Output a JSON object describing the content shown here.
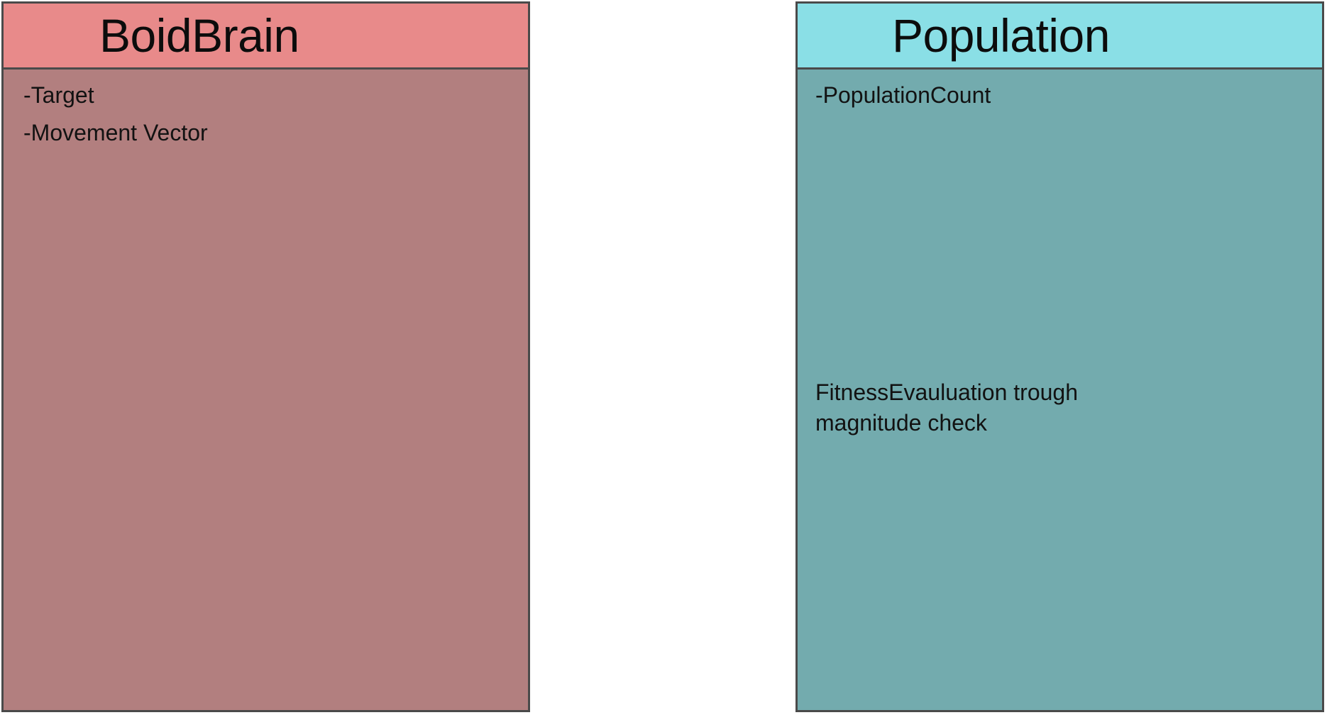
{
  "classes": [
    {
      "id": "boidbrain",
      "name": "BoidBrain",
      "attributes": [
        "-Target",
        "-Movement Vector"
      ],
      "methods": [],
      "colors": {
        "header": "#e88a8a",
        "body": "#b27f7f"
      }
    },
    {
      "id": "population",
      "name": "Population",
      "attributes": [
        "-PopulationCount"
      ],
      "methods": [
        "FitnessEvauluation trough\nmagnitude check"
      ],
      "colors": {
        "header": "#8adfe6",
        "body": "#73abae"
      }
    }
  ],
  "colors": {
    "border": "#4a4a4a",
    "text": "#121212",
    "background": "#ffffff"
  }
}
